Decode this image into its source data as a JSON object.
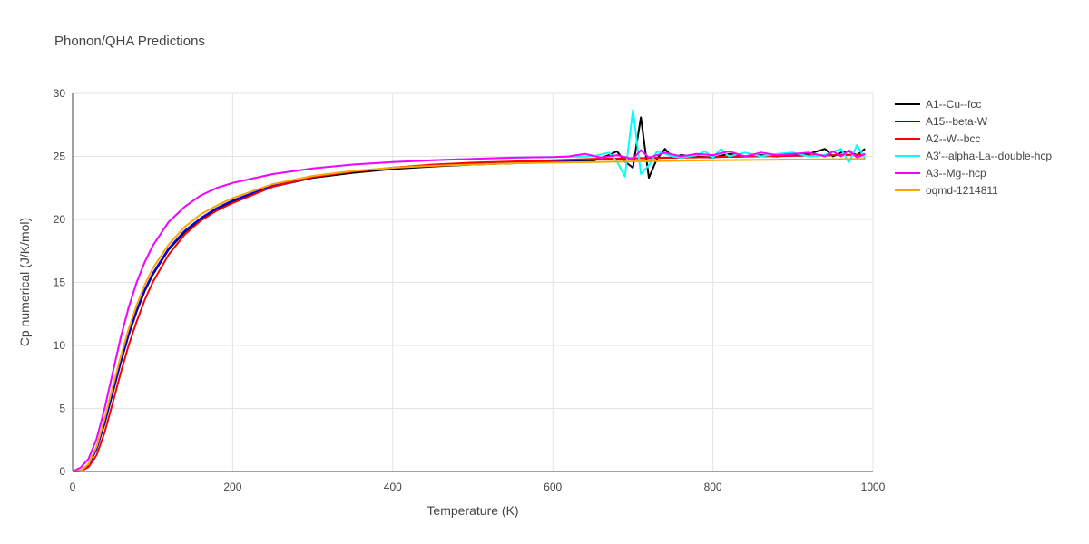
{
  "chart_data": {
    "type": "line",
    "title": "Phonon/QHA Predictions",
    "xlabel": "Temperature (K)",
    "ylabel": "Cp numerical (J/K/mol)",
    "xlim": [
      0,
      1000
    ],
    "ylim": [
      0,
      30
    ],
    "x_ticks": [
      0,
      200,
      400,
      600,
      800,
      1000
    ],
    "y_ticks": [
      0,
      5,
      10,
      15,
      20,
      25,
      30
    ],
    "grid": true,
    "legend_position": "top-right",
    "series": [
      {
        "name": "A1--Cu--fcc",
        "color": "#000000",
        "x": [
          0,
          10,
          20,
          30,
          40,
          50,
          60,
          70,
          80,
          90,
          100,
          120,
          140,
          160,
          180,
          200,
          250,
          300,
          350,
          400,
          450,
          500,
          550,
          600,
          650,
          670,
          680,
          690,
          700,
          710,
          720,
          730,
          740,
          750,
          760,
          780,
          800,
          820,
          840,
          860,
          880,
          900,
          920,
          940,
          950,
          960,
          970,
          980,
          990
        ],
        "y": [
          0,
          0.05,
          0.5,
          1.8,
          3.8,
          6.2,
          8.6,
          10.8,
          12.7,
          14.3,
          15.6,
          17.6,
          19.0,
          20.0,
          20.8,
          21.4,
          22.6,
          23.3,
          23.7,
          24.0,
          24.2,
          24.35,
          24.45,
          24.55,
          24.65,
          25.1,
          25.4,
          24.6,
          24.1,
          28.1,
          23.3,
          24.8,
          25.6,
          24.9,
          25.1,
          25.0,
          24.9,
          25.2,
          25.0,
          25.1,
          25.0,
          25.1,
          25.2,
          25.6,
          25.0,
          25.3,
          25.4,
          25.1,
          25.6
        ]
      },
      {
        "name": "A15--beta-W",
        "color": "#0000ff",
        "x": [
          0,
          10,
          20,
          30,
          40,
          50,
          60,
          70,
          80,
          90,
          100,
          120,
          140,
          160,
          180,
          200,
          250,
          300,
          350,
          400,
          450,
          500,
          550,
          600,
          650,
          700,
          750,
          800,
          850,
          900,
          950,
          990
        ],
        "y": [
          0,
          0.05,
          0.5,
          1.8,
          3.9,
          6.3,
          8.7,
          10.9,
          12.8,
          14.4,
          15.7,
          17.7,
          19.1,
          20.1,
          20.9,
          21.5,
          22.7,
          23.4,
          23.8,
          24.1,
          24.3,
          24.45,
          24.55,
          24.65,
          24.75,
          24.85,
          24.9,
          24.95,
          25.0,
          25.05,
          25.1,
          25.15
        ]
      },
      {
        "name": "A2--W--bcc",
        "color": "#ff0000",
        "x": [
          0,
          10,
          20,
          30,
          40,
          50,
          60,
          70,
          80,
          90,
          100,
          120,
          140,
          160,
          180,
          200,
          250,
          300,
          350,
          400,
          450,
          500,
          550,
          600,
          650,
          700,
          750,
          800,
          850,
          900,
          950,
          990
        ],
        "y": [
          0,
          0.03,
          0.35,
          1.3,
          3.1,
          5.4,
          7.8,
          10.0,
          11.9,
          13.6,
          15.0,
          17.2,
          18.8,
          19.9,
          20.7,
          21.3,
          22.6,
          23.35,
          23.8,
          24.1,
          24.35,
          24.5,
          24.6,
          24.7,
          24.8,
          24.85,
          24.9,
          24.95,
          25.0,
          25.05,
          25.1,
          25.15
        ]
      },
      {
        "name": "A3'--alpha-La--double-hcp",
        "color": "#00ffff",
        "x": [
          0,
          10,
          20,
          30,
          40,
          50,
          60,
          70,
          80,
          90,
          100,
          120,
          140,
          160,
          180,
          200,
          250,
          300,
          350,
          400,
          450,
          500,
          550,
          600,
          650,
          670,
          680,
          690,
          700,
          710,
          720,
          730,
          740,
          750,
          760,
          780,
          790,
          800,
          810,
          820,
          840,
          860,
          880,
          900,
          920,
          940,
          960,
          970,
          980,
          990
        ],
        "y": [
          0,
          0.3,
          1.0,
          2.6,
          5.0,
          7.8,
          10.6,
          13.0,
          15.0,
          16.6,
          17.9,
          19.8,
          21.0,
          21.9,
          22.5,
          22.9,
          23.6,
          24.05,
          24.35,
          24.55,
          24.7,
          24.8,
          24.9,
          24.95,
          25.0,
          25.3,
          24.6,
          23.4,
          28.7,
          23.6,
          24.3,
          25.4,
          25.2,
          25.0,
          24.9,
          25.1,
          25.4,
          24.9,
          25.6,
          25.0,
          25.3,
          25.0,
          25.2,
          25.3,
          25.0,
          25.1,
          25.6,
          24.5,
          25.9,
          24.8
        ]
      },
      {
        "name": "A3--Mg--hcp",
        "color": "#ff00ff",
        "x": [
          0,
          10,
          20,
          30,
          40,
          50,
          60,
          70,
          80,
          90,
          100,
          120,
          140,
          160,
          180,
          200,
          250,
          300,
          350,
          400,
          450,
          500,
          550,
          600,
          620,
          640,
          660,
          680,
          700,
          710,
          720,
          740,
          760,
          780,
          800,
          820,
          840,
          860,
          880,
          900,
          920,
          940,
          950,
          960,
          970,
          980,
          990
        ],
        "y": [
          0,
          0.3,
          1.0,
          2.6,
          5.0,
          7.8,
          10.6,
          13.0,
          15.0,
          16.6,
          17.9,
          19.8,
          21.0,
          21.9,
          22.5,
          22.9,
          23.6,
          24.05,
          24.35,
          24.55,
          24.7,
          24.8,
          24.9,
          24.95,
          25.0,
          25.2,
          24.9,
          25.1,
          24.8,
          25.5,
          24.9,
          25.3,
          25.0,
          25.2,
          25.1,
          25.4,
          25.0,
          25.3,
          25.1,
          25.2,
          25.3,
          25.0,
          25.4,
          25.0,
          25.5,
          24.9,
          25.2
        ]
      },
      {
        "name": "oqmd-1214811",
        "color": "#ffa500",
        "x": [
          0,
          10,
          20,
          30,
          40,
          50,
          60,
          70,
          80,
          90,
          100,
          120,
          140,
          160,
          180,
          200,
          250,
          300,
          350,
          400,
          450,
          500,
          550,
          600,
          650,
          700,
          750,
          800,
          850,
          900,
          950,
          990
        ],
        "y": [
          0,
          0.06,
          0.6,
          2.0,
          4.2,
          6.7,
          9.1,
          11.3,
          13.2,
          14.8,
          16.1,
          18.0,
          19.4,
          20.4,
          21.1,
          21.7,
          22.8,
          23.45,
          23.85,
          24.1,
          24.25,
          24.35,
          24.45,
          24.5,
          24.55,
          24.6,
          24.65,
          24.7,
          24.72,
          24.75,
          24.78,
          24.8
        ]
      }
    ]
  }
}
